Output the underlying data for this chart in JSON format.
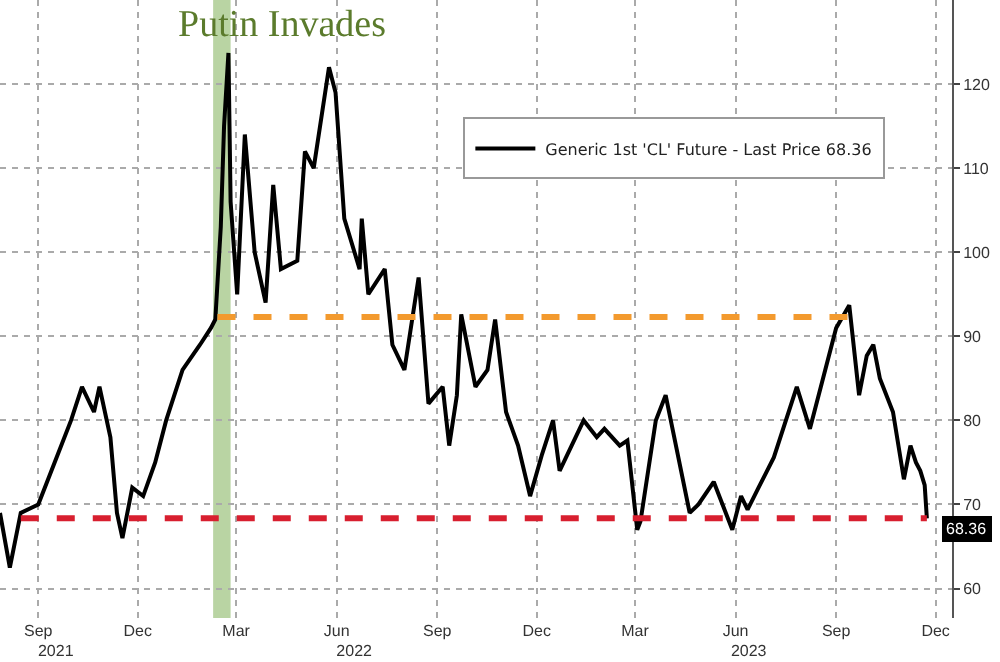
{
  "chart_data": {
    "type": "line",
    "x": [
      "2021-08-11",
      "2021-08-20",
      "2021-08-30",
      "2021-09-15",
      "2021-09-30",
      "2021-10-15",
      "2021-10-25",
      "2021-11-05",
      "2021-11-10",
      "2021-11-20",
      "2021-11-26",
      "2021-12-01",
      "2021-12-10",
      "2021-12-20",
      "2021-12-31",
      "2022-01-10",
      "2022-01-25",
      "2022-02-10",
      "2022-02-20",
      "2022-02-24",
      "2022-03-01",
      "2022-03-04",
      "2022-03-08",
      "2022-03-10",
      "2022-03-16",
      "2022-03-23",
      "2022-04-01",
      "2022-04-11",
      "2022-04-18",
      "2022-04-25",
      "2022-05-10",
      "2022-05-17",
      "2022-05-25",
      "2022-06-08",
      "2022-06-14",
      "2022-06-22",
      "2022-07-06",
      "2022-07-08",
      "2022-07-14",
      "2022-07-29",
      "2022-08-05",
      "2022-08-16",
      "2022-08-29",
      "2022-09-07",
      "2022-09-20",
      "2022-09-26",
      "2022-10-03",
      "2022-10-07",
      "2022-10-20",
      "2022-10-31",
      "2022-11-07",
      "2022-11-17",
      "2022-11-28",
      "2022-12-09",
      "2022-12-20",
      "2022-12-30",
      "2023-01-05",
      "2023-01-27",
      "2023-02-08",
      "2023-02-15",
      "2023-03-01",
      "2023-03-08",
      "2023-03-17",
      "2023-03-20",
      "2023-04-03",
      "2023-04-12",
      "2023-05-04",
      "2023-05-12",
      "2023-05-26",
      "2023-06-12",
      "2023-06-20",
      "2023-06-26",
      "2023-07-06",
      "2023-07-20",
      "2023-08-10",
      "2023-08-22",
      "2023-09-05",
      "2023-09-15",
      "2023-09-27",
      "2023-10-06",
      "2023-10-13",
      "2023-10-19",
      "2023-10-25",
      "2023-11-06",
      "2023-11-16",
      "2023-11-22",
      "2023-11-27",
      "2023-12-01",
      "2023-12-05",
      "2023-12-07"
    ],
    "series": [
      {
        "name": "Generic 1st 'CL' Future - Last Price 68.36",
        "color": "#000000",
        "values": [
          69,
          62.5,
          69,
          70,
          75,
          80,
          84,
          81,
          84,
          78,
          69,
          66,
          72,
          71,
          75,
          80,
          86,
          89,
          91,
          92,
          103,
          115,
          123.7,
          106,
          95,
          114,
          100,
          94,
          108,
          98,
          99,
          112,
          110,
          122,
          119,
          104,
          98,
          104,
          95,
          98,
          89,
          86,
          97,
          82,
          84,
          77,
          83,
          92.6,
          84,
          86,
          92,
          81,
          77,
          71,
          76,
          80,
          74,
          80,
          78,
          79,
          77,
          77.6,
          67,
          68,
          80,
          83,
          69,
          70,
          72.7,
          67,
          71,
          69.4,
          72,
          75.6,
          84,
          79,
          86,
          91,
          93.7,
          83,
          87.7,
          89,
          85,
          81,
          73,
          77,
          75,
          74,
          72.3,
          68.36
        ]
      },
      {
        "type": "line",
        "color": "#f39a2e",
        "line_style": "dashed",
        "x": [
          "2022-02-26",
          "2023-09-27"
        ],
        "values": [
          92.3,
          92.3
        ]
      },
      {
        "type": "line",
        "color": "#d81f2f",
        "line_style": "dashed",
        "x": [
          "2021-08-30",
          "2023-12-07"
        ],
        "values": [
          68.36,
          68.36
        ]
      }
    ],
    "bands": [
      {
        "axis": "x",
        "from": "2022-02-22",
        "to": "2022-03-10",
        "label": "Putin Invades",
        "color": "#a8c98c"
      }
    ],
    "annotations": [
      {
        "text": "68.36",
        "x": "2023-12-07",
        "y": 68.36
      }
    ],
    "xlim": [
      "2021-08-11",
      "2023-12-30"
    ],
    "xticks": [
      {
        "value": "2021-09-15",
        "label": "Sep"
      },
      {
        "value": "2021-12-15",
        "label": "Dec"
      },
      {
        "value": "2022-03-15",
        "label": "Mar"
      },
      {
        "value": "2022-06-15",
        "label": "Jun"
      },
      {
        "value": "2022-09-15",
        "label": "Sep"
      },
      {
        "value": "2022-12-15",
        "label": "Dec"
      },
      {
        "value": "2023-03-15",
        "label": "Mar"
      },
      {
        "value": "2023-06-15",
        "label": "Jun"
      },
      {
        "value": "2023-09-15",
        "label": "Sep"
      },
      {
        "value": "2023-12-15",
        "label": "Dec"
      }
    ],
    "x2lim": [
      "2021-08-11",
      "2023-12-30"
    ],
    "x2ticks": [
      {
        "value": "2021-10-01",
        "label": "2021"
      },
      {
        "value": "2022-07-01",
        "label": "2022"
      },
      {
        "value": "2023-06-27",
        "label": "2023"
      }
    ],
    "ylim": [
      56.5,
      130
    ],
    "yticks": [
      60,
      70,
      80,
      90,
      100,
      110,
      120
    ],
    "grid": true,
    "legend": "top right",
    "line_style": "solid",
    "marker": "none"
  }
}
